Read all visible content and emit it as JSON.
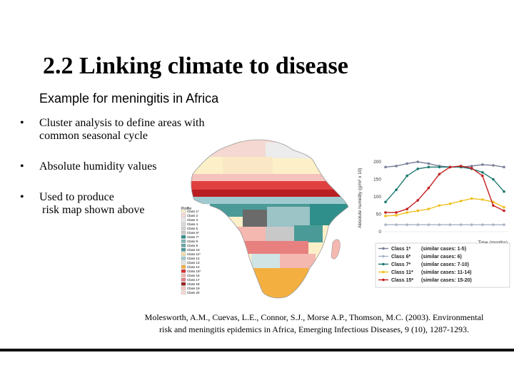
{
  "slide": {
    "title": "2.2 Linking climate to disease",
    "subtitle": "Example for meningitis in Africa",
    "bullet_glyph": "•",
    "bullets": [
      {
        "line1": "Cluster analysis to define areas with",
        "line2": "common seasonal cycle"
      },
      {
        "line1": "Absolute humidity values",
        "line2": ""
      },
      {
        "line1": "Used to produce",
        "line2": " risk map shown above"
      }
    ],
    "citation": {
      "line1": "Molesworth, A.M., Cuevas, L.E., Connor, S.J., Morse A.P., Thomson, M.C. (2003). Environmental",
      "line2": "risk and meningitis epidemics in Africa, Emerging Infectious Diseases, 9 (10), 1287-1293."
    }
  },
  "map": {
    "legend_title": "Profile",
    "legend": [
      {
        "label": "Class 1*",
        "color": "#fdf0c8"
      },
      {
        "label": "Class 2",
        "color": "#f7d9d4"
      },
      {
        "label": "Class 3",
        "color": "#ececec"
      },
      {
        "label": "Class 4",
        "color": "#dcdcdc"
      },
      {
        "label": "Class 5",
        "color": "#cfd4d8"
      },
      {
        "label": "Class 6*",
        "color": "#c8c8c8"
      },
      {
        "label": "Class 7*",
        "color": "#2f8f8a"
      },
      {
        "label": "Class 8",
        "color": "#7fb5b8"
      },
      {
        "label": "Class 9",
        "color": "#6aa7a8"
      },
      {
        "label": "Class 10",
        "color": "#4a9b98"
      },
      {
        "label": "Class 11*",
        "color": "#f0e0a8"
      },
      {
        "label": "Class 12",
        "color": "#9fcad0"
      },
      {
        "label": "Class 13",
        "color": "#e8e8e8"
      },
      {
        "label": "Class 14",
        "color": "#f3b040"
      },
      {
        "label": "Class 15*",
        "color": "#d83030"
      },
      {
        "label": "Class 16",
        "color": "#f4b8b0"
      },
      {
        "label": "Class 17",
        "color": "#e88080"
      },
      {
        "label": "Class 18",
        "color": "#9a2020"
      },
      {
        "label": "Class 19",
        "color": "#f6c7c0"
      },
      {
        "label": "Class 20",
        "color": "#f9dad5"
      }
    ]
  },
  "chart_data": {
    "type": "line",
    "ylabel": "Absolute humidity (g/m³ x 10)",
    "xlabel": "Time (months)",
    "ylim": [
      0,
      200
    ],
    "yticks": [
      "200",
      "150",
      "100",
      "50",
      "0"
    ],
    "x": [
      1,
      2,
      3,
      4,
      5,
      6,
      7,
      8,
      9,
      10,
      11,
      12
    ],
    "series": [
      {
        "name": "Class 1*",
        "note": "(similar cases: 1-5)",
        "color": "#7a7f99",
        "values": [
          185,
          188,
          195,
          200,
          195,
          188,
          185,
          185,
          188,
          192,
          190,
          185
        ]
      },
      {
        "name": "Class 6*",
        "note": "(similar cases: 6)",
        "color": "#a7b3c9",
        "values": [
          20,
          20,
          20,
          20,
          20,
          20,
          20,
          20,
          20,
          20,
          20,
          20
        ]
      },
      {
        "name": "Class 7*",
        "note": "(similar cases: 7-10)",
        "color": "#1e7a70",
        "values": [
          85,
          120,
          160,
          180,
          185,
          185,
          185,
          185,
          180,
          170,
          150,
          115
        ]
      },
      {
        "name": "Class 11*",
        "note": "(similar cases: 11-14)",
        "color": "#f0c020",
        "values": [
          45,
          47,
          55,
          60,
          65,
          75,
          80,
          88,
          95,
          92,
          85,
          70
        ]
      },
      {
        "name": "Class 15*",
        "note": "(similar cases: 15-20)",
        "color": "#c42020",
        "values": [
          55,
          55,
          65,
          90,
          125,
          165,
          185,
          188,
          182,
          160,
          75,
          60
        ]
      }
    ]
  }
}
